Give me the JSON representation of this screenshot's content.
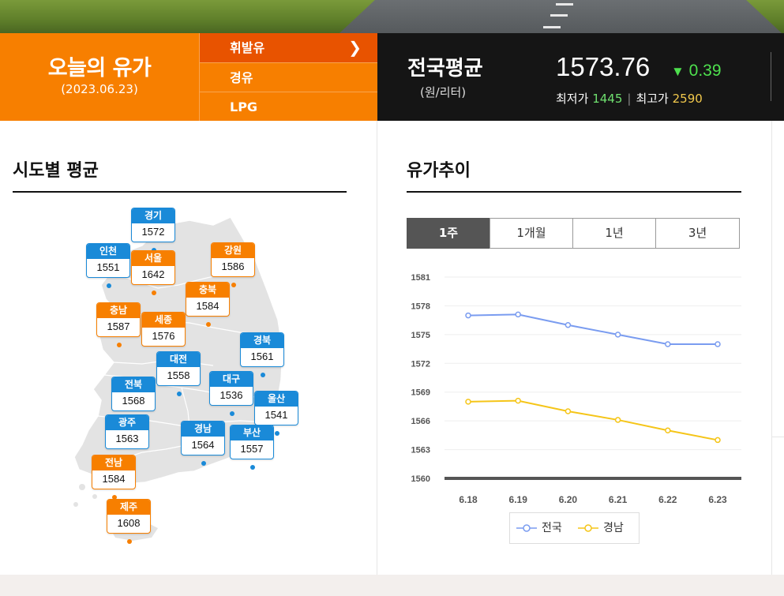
{
  "header": {
    "today_title": "오늘의 유가",
    "today_date": "(2023.06.23)",
    "fuel_tabs": [
      "휘발유",
      "경유",
      "LPG"
    ],
    "active_tab_chevron": "chevron-right-icon",
    "nation": {
      "title": "전국평균",
      "unit": "(원/리터)",
      "price": "1573.76",
      "change_arrow": "▼",
      "change": "0.39",
      "min_label": "최저가",
      "min_value": "1445",
      "max_label": "최고가",
      "max_value": "2590"
    }
  },
  "region": {
    "title": "시도별 평균",
    "pins": [
      {
        "name": "경기",
        "value": "1572",
        "color": "blue"
      },
      {
        "name": "인천",
        "value": "1551",
        "color": "blue"
      },
      {
        "name": "서울",
        "value": "1642",
        "color": "orange"
      },
      {
        "name": "강원",
        "value": "1586",
        "color": "orange"
      },
      {
        "name": "충북",
        "value": "1584",
        "color": "orange"
      },
      {
        "name": "충남",
        "value": "1587",
        "color": "orange"
      },
      {
        "name": "세종",
        "value": "1576",
        "color": "orange"
      },
      {
        "name": "경북",
        "value": "1561",
        "color": "blue"
      },
      {
        "name": "대전",
        "value": "1558",
        "color": "blue"
      },
      {
        "name": "전북",
        "value": "1568",
        "color": "blue"
      },
      {
        "name": "대구",
        "value": "1536",
        "color": "blue"
      },
      {
        "name": "울산",
        "value": "1541",
        "color": "blue"
      },
      {
        "name": "광주",
        "value": "1563",
        "color": "blue"
      },
      {
        "name": "경남",
        "value": "1564",
        "color": "blue"
      },
      {
        "name": "부산",
        "value": "1557",
        "color": "blue"
      },
      {
        "name": "전남",
        "value": "1584",
        "color": "orange"
      },
      {
        "name": "제주",
        "value": "1608",
        "color": "orange"
      }
    ]
  },
  "trend": {
    "title": "유가추이",
    "period_tabs": [
      "1주",
      "1개월",
      "1년",
      "3년"
    ],
    "active_period": "1주"
  },
  "colors": {
    "orange": "#f77f00",
    "blue": "#1a8ad8",
    "series_nation": "#7a9cf0",
    "series_gyeongnam": "#f5c518"
  },
  "chart_data": {
    "type": "line",
    "title": "",
    "xlabel": "",
    "ylabel": "",
    "x": [
      "6.18",
      "6.19",
      "6.20",
      "6.21",
      "6.22",
      "6.23"
    ],
    "yticks": [
      1560,
      1563,
      1566,
      1569,
      1572,
      1575,
      1578,
      1581
    ],
    "ylim": [
      1560,
      1581
    ],
    "grid": true,
    "legend": "bottom",
    "series": [
      {
        "name": "전국",
        "values": [
          1577.0,
          1577.1,
          1576.0,
          1575.0,
          1574.0,
          1574.0
        ]
      },
      {
        "name": "경남",
        "values": [
          1568.0,
          1568.1,
          1567.0,
          1566.1,
          1565.0,
          1564.0
        ]
      }
    ]
  }
}
